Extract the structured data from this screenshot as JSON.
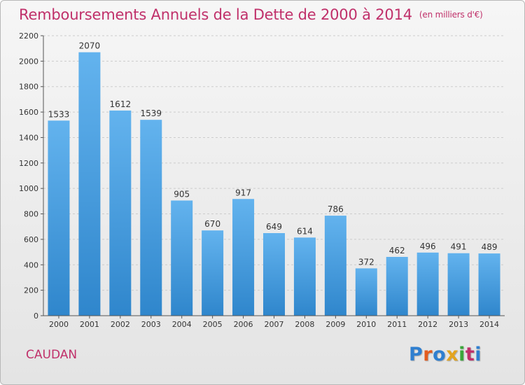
{
  "header": {
    "title": "Remboursements Annuels de la Dette de 2000 à 2014",
    "unit": "(en milliers d'€)"
  },
  "footer": {
    "commune": "CAUDAN",
    "logo": "Proxiti"
  },
  "colors": {
    "bar_top": "#63b3ee",
    "bar_bottom": "#2f86cc",
    "title": "#c0306a",
    "grid": "#cccccc"
  },
  "chart_data": {
    "type": "bar",
    "title": "Remboursements Annuels de la Dette de 2000 à 2014",
    "subtitle": "(en milliers d'€)",
    "categories": [
      "2000",
      "2001",
      "2002",
      "2003",
      "2004",
      "2005",
      "2006",
      "2007",
      "2008",
      "2009",
      "2010",
      "2011",
      "2012",
      "2013",
      "2014"
    ],
    "values": [
      1533,
      2070,
      1612,
      1539,
      905,
      670,
      917,
      649,
      614,
      786,
      372,
      462,
      496,
      491,
      489
    ],
    "ylim": [
      0,
      2200
    ],
    "yticks": [
      0,
      200,
      400,
      600,
      800,
      1000,
      1200,
      1400,
      1600,
      1800,
      2000,
      2200
    ],
    "grid": true,
    "data_labels": true
  }
}
